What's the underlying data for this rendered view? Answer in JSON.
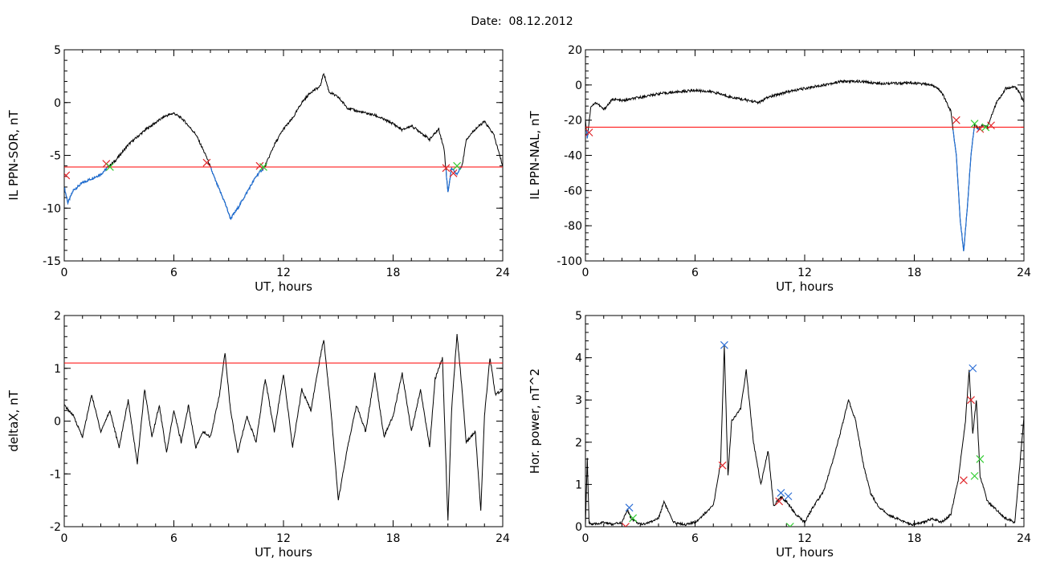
{
  "page": {
    "title": "Date:  08.12.2012"
  },
  "colors": {
    "trace": "#000000",
    "threshold": "#ff0000",
    "below": "#1f6fd6",
    "marker_red": "#e0262a",
    "marker_green": "#33cc33",
    "marker_blue": "#2d6fd6"
  },
  "chart_data": [
    {
      "id": "sor",
      "type": "line",
      "xlabel": "UT, hours",
      "ylabel": "IL PPN-SOR, nT",
      "xlim": [
        0,
        24
      ],
      "ylim": [
        -15,
        5
      ],
      "xticks": [
        0,
        6,
        12,
        18,
        24
      ],
      "yticks": [
        5,
        0,
        -5,
        -10,
        -15
      ],
      "threshold": -6.1,
      "grid": false,
      "series": [
        {
          "color": "#000000",
          "below_threshold_color": "#1f6fd6",
          "x": [
            0,
            0.2,
            0.5,
            1,
            1.5,
            2,
            2.4,
            2.8,
            3.5,
            4.5,
            5.5,
            6,
            6.5,
            7.2,
            7.8,
            8.3,
            8.8,
            9.1,
            9.5,
            10,
            10.5,
            11,
            11.5,
            12,
            12.5,
            13,
            13.5,
            14,
            14.2,
            14.5,
            15,
            15.5,
            16,
            16.5,
            17,
            17.5,
            18,
            18.5,
            19,
            19.5,
            20,
            20.5,
            20.8,
            21,
            21.2,
            21.5,
            21.8,
            22,
            22.5,
            23,
            23.5,
            24
          ],
          "y": [
            -8,
            -9.5,
            -8.3,
            -7.6,
            -7.2,
            -6.8,
            -6.1,
            -5.5,
            -4,
            -2.5,
            -1.3,
            -1,
            -1.6,
            -3,
            -5.2,
            -7.5,
            -9.5,
            -11,
            -10,
            -8.5,
            -7,
            -6,
            -4,
            -2.5,
            -1.5,
            0,
            1,
            1.5,
            2.8,
            1,
            0.5,
            -0.5,
            -0.8,
            -1,
            -1.2,
            -1.6,
            -2,
            -2.6,
            -2.2,
            -2.8,
            -3.5,
            -2.5,
            -4.5,
            -8.5,
            -6.2,
            -6.8,
            -5.8,
            -3.5,
            -2.5,
            -1.8,
            -3,
            -6
          ]
        }
      ],
      "markers": [
        {
          "x": 2.3,
          "y": -5.8,
          "color": "red"
        },
        {
          "x": 2.5,
          "y": -6.1,
          "color": "green"
        },
        {
          "x": 7.8,
          "y": -5.7,
          "color": "red"
        },
        {
          "x": 10.7,
          "y": -6.0,
          "color": "red"
        },
        {
          "x": 10.9,
          "y": -6.1,
          "color": "green"
        },
        {
          "x": 20.9,
          "y": -6.2,
          "color": "red"
        },
        {
          "x": 21.3,
          "y": -6.7,
          "color": "red"
        },
        {
          "x": 21.5,
          "y": -6.0,
          "color": "green"
        },
        {
          "x": 0.1,
          "y": -6.9,
          "color": "red"
        }
      ]
    },
    {
      "id": "nal",
      "type": "line",
      "xlabel": "UT, hours",
      "ylabel": "IL PPN-NAL, nT",
      "xlim": [
        0,
        24
      ],
      "ylim": [
        -100,
        20
      ],
      "xticks": [
        0,
        6,
        12,
        18,
        24
      ],
      "yticks": [
        20,
        0,
        -20,
        -40,
        -60,
        -80,
        -100
      ],
      "threshold": -24,
      "grid": false,
      "series": [
        {
          "color": "#000000",
          "below_threshold_color": "#1f6fd6",
          "x": [
            0,
            0.1,
            0.3,
            0.6,
            1,
            1.5,
            2,
            3,
            4,
            5,
            6,
            7,
            8,
            9,
            9.5,
            10,
            11,
            12,
            13,
            14,
            15,
            16,
            17,
            18,
            19,
            19.5,
            20,
            20.3,
            20.5,
            20.7,
            20.9,
            21.1,
            21.3,
            21.5,
            21.7,
            22,
            22.2,
            22.5,
            23,
            23.5,
            23.8,
            24
          ],
          "y": [
            -20,
            -30,
            -12,
            -10,
            -14,
            -8,
            -9,
            -7,
            -5,
            -4,
            -3,
            -4,
            -7,
            -9,
            -10,
            -7,
            -4,
            -2,
            0,
            2,
            2,
            1,
            1,
            1,
            0,
            -4,
            -15,
            -40,
            -75,
            -95,
            -70,
            -40,
            -22,
            -25,
            -23,
            -24,
            -18,
            -10,
            -2,
            -1,
            -5,
            -10
          ]
        }
      ],
      "markers": [
        {
          "x": 0.2,
          "y": -27,
          "color": "red"
        },
        {
          "x": 20.3,
          "y": -20,
          "color": "red"
        },
        {
          "x": 21.3,
          "y": -22,
          "color": "green"
        },
        {
          "x": 21.6,
          "y": -25,
          "color": "red"
        },
        {
          "x": 21.9,
          "y": -24,
          "color": "green"
        },
        {
          "x": 22.2,
          "y": -23,
          "color": "red"
        }
      ]
    },
    {
      "id": "deltax",
      "type": "line",
      "xlabel": "UT, hours",
      "ylabel": "deltaX, nT",
      "xlim": [
        0,
        24
      ],
      "ylim": [
        -2,
        2
      ],
      "xticks": [
        0,
        6,
        12,
        18,
        24
      ],
      "yticks": [
        2,
        1,
        0,
        -1,
        -2
      ],
      "threshold": 1.1,
      "grid": false,
      "series": [
        {
          "color": "#000000",
          "x": [
            0,
            0.5,
            1,
            1.5,
            2,
            2.5,
            3,
            3.5,
            4,
            4.4,
            4.8,
            5.2,
            5.6,
            6,
            6.4,
            6.8,
            7.2,
            7.6,
            8,
            8.5,
            8.8,
            9.1,
            9.5,
            10,
            10.5,
            11,
            11.5,
            12,
            12.5,
            13,
            13.5,
            14,
            14.2,
            14.6,
            15,
            15.5,
            16,
            16.5,
            17,
            17.5,
            18,
            18.5,
            19,
            19.5,
            20,
            20.3,
            20.7,
            21,
            21.2,
            21.5,
            21.8,
            22,
            22.5,
            22.8,
            23,
            23.3,
            23.6,
            24
          ],
          "y": [
            0.3,
            0.1,
            -0.3,
            0.5,
            -0.2,
            0.2,
            -0.5,
            0.4,
            -0.8,
            0.6,
            -0.3,
            0.3,
            -0.6,
            0.2,
            -0.4,
            0.3,
            -0.5,
            -0.2,
            -0.3,
            0.5,
            1.3,
            0.2,
            -0.6,
            0.1,
            -0.4,
            0.8,
            -0.2,
            0.9,
            -0.5,
            0.6,
            0.2,
            1.2,
            1.55,
            0.2,
            -1.5,
            -0.5,
            0.3,
            -0.2,
            0.9,
            -0.3,
            0.1,
            0.9,
            -0.2,
            0.6,
            -0.5,
            0.8,
            1.2,
            -1.9,
            0.2,
            1.65,
            0.5,
            -0.4,
            -0.2,
            -1.7,
            0.1,
            1.2,
            0.5,
            0.6
          ]
        }
      ],
      "markers": []
    },
    {
      "id": "power",
      "type": "line",
      "xlabel": "UT, hours",
      "ylabel": "Hor. power, nT^2",
      "xlim": [
        0,
        24
      ],
      "ylim": [
        0,
        5
      ],
      "xticks": [
        0,
        6,
        12,
        18,
        24
      ],
      "yticks": [
        5,
        4,
        3,
        2,
        1,
        0
      ],
      "threshold": null,
      "grid": false,
      "series": [
        {
          "color": "#000000",
          "x": [
            0,
            0.1,
            0.2,
            0.4,
            1,
            1.5,
            2,
            2.3,
            2.5,
            3,
            3.5,
            4,
            4.3,
            4.8,
            5.5,
            6,
            6.5,
            7,
            7.4,
            7.6,
            7.8,
            8,
            8.5,
            8.8,
            9.2,
            9.6,
            10,
            10.3,
            10.7,
            11,
            11.5,
            12,
            12.5,
            13,
            13.5,
            14,
            14.4,
            14.8,
            15.2,
            15.6,
            16,
            16.5,
            17,
            17.5,
            18,
            18.5,
            19,
            19.5,
            20,
            20.4,
            20.8,
            21,
            21.2,
            21.4,
            21.6,
            22,
            22.5,
            23,
            23.5,
            24
          ],
          "y": [
            0.05,
            1.6,
            0.1,
            0.05,
            0.1,
            0.05,
            0.1,
            0.4,
            0.2,
            0.05,
            0.1,
            0.2,
            0.6,
            0.1,
            0.05,
            0.1,
            0.3,
            0.5,
            1.5,
            4.3,
            1.2,
            2.5,
            2.8,
            3.7,
            2.0,
            1.0,
            1.8,
            0.5,
            0.7,
            0.6,
            0.3,
            0.1,
            0.5,
            0.8,
            1.5,
            2.3,
            3.0,
            2.5,
            1.5,
            0.8,
            0.5,
            0.3,
            0.2,
            0.1,
            0.05,
            0.1,
            0.2,
            0.1,
            0.3,
            1.1,
            2.5,
            3.7,
            2.2,
            3.0,
            1.2,
            0.6,
            0.4,
            0.2,
            0.1,
            2.6
          ]
        }
      ],
      "markers": [
        {
          "x": 2.4,
          "y": 0.45,
          "color": "blue"
        },
        {
          "x": 2.6,
          "y": 0.2,
          "color": "green"
        },
        {
          "x": 2.2,
          "y": 0.0,
          "color": "red"
        },
        {
          "x": 7.6,
          "y": 4.3,
          "color": "blue"
        },
        {
          "x": 7.5,
          "y": 1.45,
          "color": "red"
        },
        {
          "x": 10.7,
          "y": 0.8,
          "color": "blue"
        },
        {
          "x": 11.1,
          "y": 0.72,
          "color": "blue"
        },
        {
          "x": 10.6,
          "y": 0.6,
          "color": "red"
        },
        {
          "x": 11.2,
          "y": 0.0,
          "color": "green"
        },
        {
          "x": 21.2,
          "y": 3.75,
          "color": "blue"
        },
        {
          "x": 21.1,
          "y": 3.0,
          "color": "red"
        },
        {
          "x": 20.7,
          "y": 1.1,
          "color": "red"
        },
        {
          "x": 21.6,
          "y": 1.6,
          "color": "green"
        },
        {
          "x": 21.3,
          "y": 1.2,
          "color": "green"
        }
      ]
    }
  ]
}
